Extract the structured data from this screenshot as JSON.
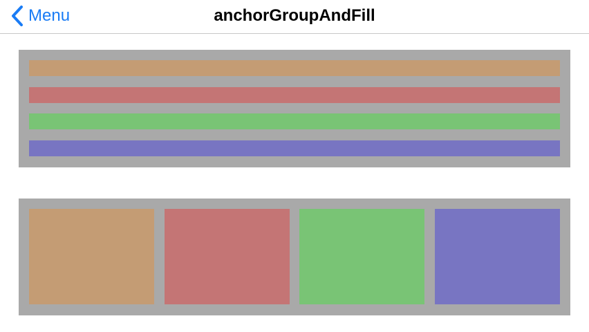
{
  "nav": {
    "back_label": "Menu",
    "title": "anchorGroupAndFill",
    "back_icon": "chevron-left-icon"
  },
  "colors": {
    "accent": "#1a7cf5",
    "panel": "#a9a9a9",
    "tan": "#c49c74",
    "red": "#c47575",
    "green": "#79c475",
    "blue": "#7875c2"
  }
}
